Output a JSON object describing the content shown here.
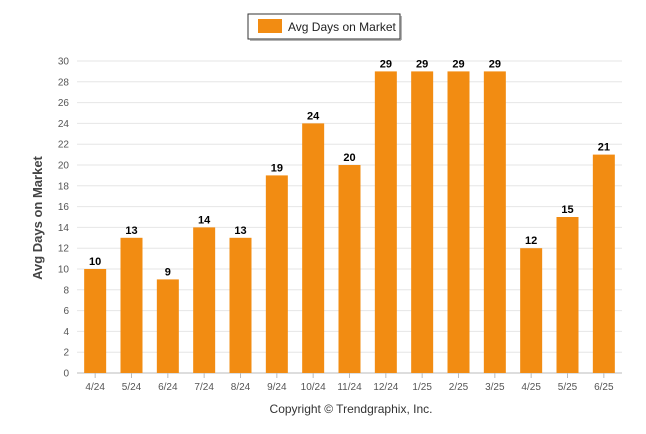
{
  "chart_data": {
    "type": "bar",
    "categories": [
      "4/24",
      "5/24",
      "6/24",
      "7/24",
      "8/24",
      "9/24",
      "10/24",
      "11/24",
      "12/24",
      "1/25",
      "2/25",
      "3/25",
      "4/25",
      "5/25",
      "6/25"
    ],
    "series": [
      {
        "name": "Avg Days on Market",
        "values": [
          10,
          13,
          9,
          14,
          13,
          19,
          24,
          20,
          29,
          29,
          29,
          29,
          12,
          15,
          21
        ]
      }
    ],
    "title": "",
    "xlabel": "",
    "ylabel": "Avg Days on Market",
    "ylim": [
      0,
      30
    ],
    "yticks": [
      0,
      2,
      4,
      6,
      8,
      10,
      12,
      14,
      16,
      18,
      20,
      22,
      24,
      26,
      28,
      30
    ],
    "grid": true,
    "legend_position": "top-center",
    "data_labels": true,
    "bar_color": "#F28C12"
  },
  "footer": {
    "copyright": "Copyright © Trendgraphix, Inc."
  }
}
